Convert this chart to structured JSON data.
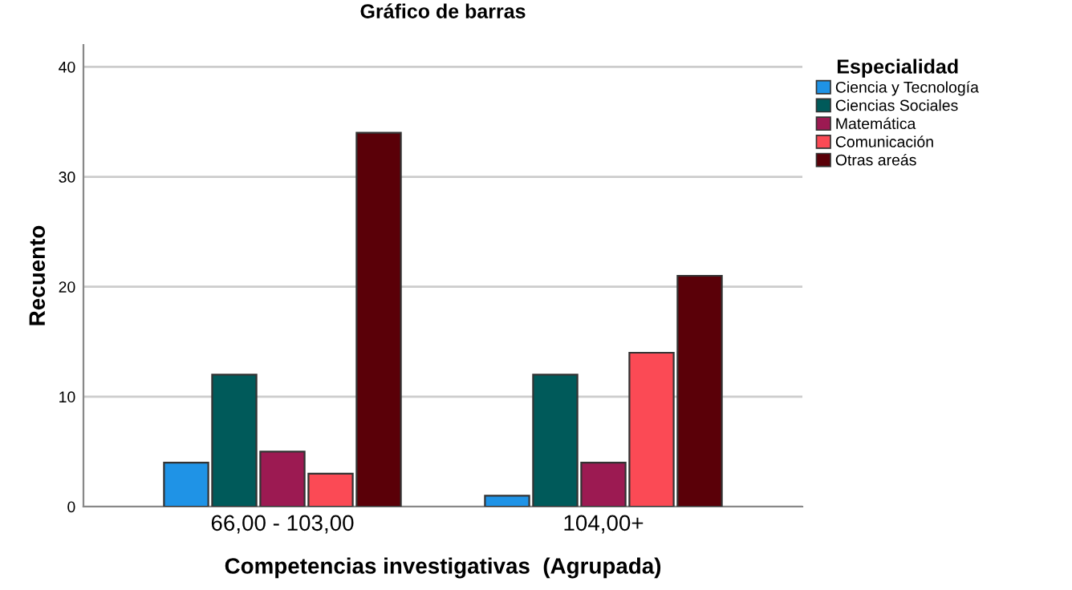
{
  "chart_data": {
    "type": "bar",
    "title": "Gráfico de barras",
    "xlabel": "Competencias investigativas  (Agrupada)",
    "ylabel": "Recuento",
    "legend_title": "Especialidad",
    "categories": [
      "66,00 - 103,00",
      "104,00+"
    ],
    "series": [
      {
        "name": "Ciencia y Tecnología",
        "color": "#1f93e6",
        "values": [
          4,
          1
        ]
      },
      {
        "name": "Ciencias Sociales",
        "color": "#005a5a",
        "values": [
          12,
          12
        ]
      },
      {
        "name": "Matemática",
        "color": "#9c1a52",
        "values": [
          5,
          4
        ]
      },
      {
        "name": "Comunicación",
        "color": "#fb4a55",
        "values": [
          3,
          14
        ]
      },
      {
        "name": "Otras areás",
        "color": "#5a0008",
        "values": [
          34,
          21
        ]
      }
    ],
    "ylim": [
      0,
      42
    ],
    "yticks": [
      0,
      10,
      20,
      30,
      40
    ],
    "grid": "y",
    "legend": "top right"
  }
}
